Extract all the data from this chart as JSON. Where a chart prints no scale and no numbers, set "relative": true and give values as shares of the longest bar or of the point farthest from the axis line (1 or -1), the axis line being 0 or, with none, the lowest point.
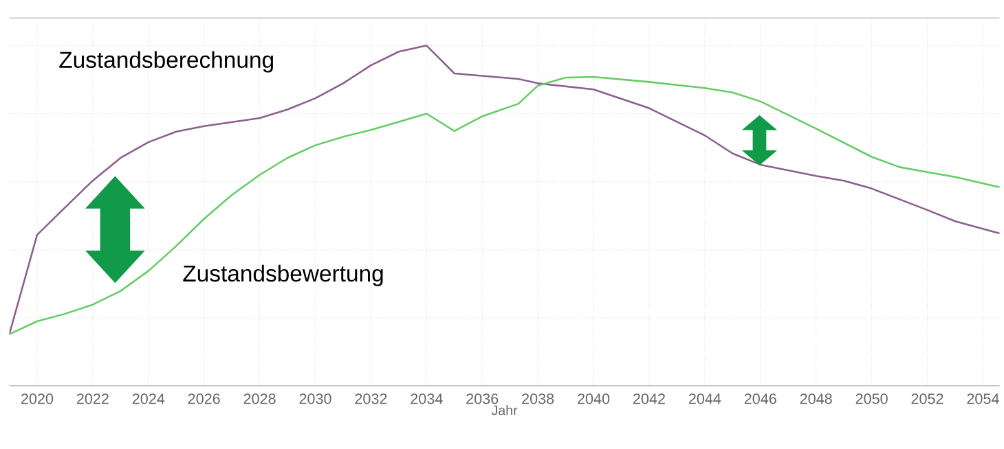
{
  "chart_data": {
    "type": "line",
    "relative": true,
    "xlabel": "Jahr",
    "xlim": [
      2019,
      2054.6
    ],
    "xticks": [
      2020,
      2022,
      2024,
      2026,
      2028,
      2030,
      2032,
      2034,
      2036,
      2038,
      2040,
      2042,
      2044,
      2046,
      2048,
      2050,
      2052,
      2054
    ],
    "grid": true,
    "marker": "none",
    "line_style": "solid",
    "series": [
      {
        "name": "Zustandsberechnung",
        "color": "#8b5f8f",
        "x": [
          2019,
          2020,
          2021,
          2022,
          2023,
          2024,
          2025,
          2026,
          2028,
          2029,
          2030,
          2031,
          2032,
          2033,
          2034,
          2035,
          2036,
          2037.3,
          2038,
          2040,
          2042,
          2044,
          2045,
          2046,
          2048,
          2049,
          2050,
          2052,
          2053,
          2054.6
        ],
        "values": [
          0.152,
          0.444,
          0.524,
          0.603,
          0.67,
          0.716,
          0.747,
          0.763,
          0.787,
          0.812,
          0.845,
          0.889,
          0.942,
          0.982,
          1.0,
          0.918,
          0.911,
          0.902,
          0.889,
          0.871,
          0.816,
          0.736,
          0.683,
          0.65,
          0.617,
          0.603,
          0.58,
          0.517,
          0.484,
          0.448
        ]
      },
      {
        "name": "Zustandsbewertung",
        "color": "#66cc66",
        "x": [
          2019,
          2020,
          2021,
          2022,
          2023,
          2024,
          2025,
          2026,
          2027,
          2028,
          2029,
          2030,
          2031,
          2032,
          2033,
          2034,
          2035,
          2036,
          2037.3,
          2038,
          2039,
          2040,
          2042,
          2044,
          2045,
          2046,
          2048,
          2050,
          2051,
          2052,
          2053,
          2054.6
        ],
        "values": [
          0.152,
          0.19,
          0.212,
          0.239,
          0.279,
          0.338,
          0.411,
          0.491,
          0.561,
          0.62,
          0.67,
          0.707,
          0.732,
          0.752,
          0.776,
          0.8,
          0.749,
          0.792,
          0.829,
          0.882,
          0.906,
          0.908,
          0.893,
          0.875,
          0.862,
          0.836,
          0.756,
          0.673,
          0.643,
          0.628,
          0.614,
          0.584
        ]
      }
    ]
  }
}
